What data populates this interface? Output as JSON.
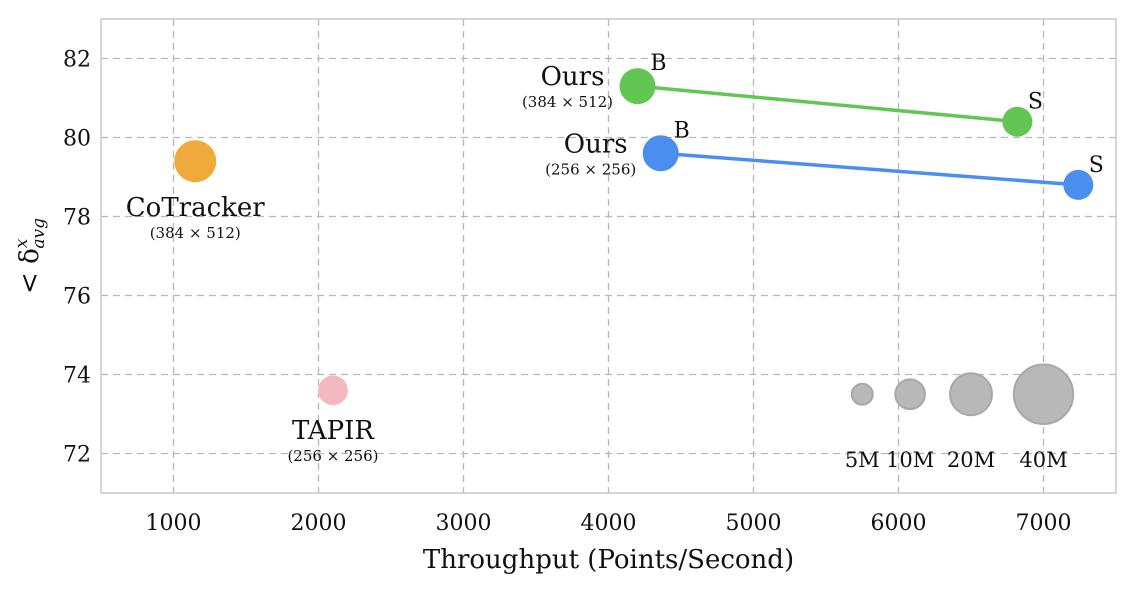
{
  "chart_data": {
    "type": "scatter",
    "xlabel": "Throughput (Points/Second)",
    "ylabel_main": "< δ",
    "ylabel_sup": "x",
    "ylabel_sub": "avg",
    "xlim": [
      500,
      7500
    ],
    "ylim": [
      71,
      83
    ],
    "xticks": [
      1000,
      2000,
      3000,
      4000,
      5000,
      6000,
      7000
    ],
    "yticks": [
      72,
      74,
      76,
      78,
      80,
      82
    ],
    "grid": true,
    "points": [
      {
        "id": "cotracker",
        "x": 1150,
        "y": 79.4,
        "params_m": 20,
        "color": "#f0aa3c",
        "label": "CoTracker",
        "sublabel": "(384 × 512)"
      },
      {
        "id": "tapir",
        "x": 2100,
        "y": 73.6,
        "params_m": 10,
        "color": "#f4b8c0",
        "label": "TAPIR",
        "sublabel": "(256 × 256)"
      }
    ],
    "series": [
      {
        "id": "ours-384",
        "label": "Ours",
        "sublabel": "(384 × 512)",
        "color": "#61c752",
        "points": [
          {
            "x": 4200,
            "y": 81.3,
            "variant": "B"
          },
          {
            "x": 6820,
            "y": 80.4,
            "variant": "S"
          }
        ]
      },
      {
        "id": "ours-256",
        "label": "Ours",
        "sublabel": "(256 × 256)",
        "color": "#4a8ef0",
        "points": [
          {
            "x": 4360,
            "y": 79.6,
            "variant": "B"
          },
          {
            "x": 7240,
            "y": 78.8,
            "variant": "S"
          }
        ]
      }
    ],
    "size_legend": {
      "color": "#b8b8b8",
      "y": 73.5,
      "items": [
        {
          "label": "5M",
          "x": 5750,
          "params_m": 5
        },
        {
          "label": "10M",
          "x": 6080,
          "params_m": 10
        },
        {
          "label": "20M",
          "x": 6500,
          "params_m": 20
        },
        {
          "label": "40M",
          "x": 7000,
          "params_m": 40
        }
      ]
    }
  }
}
